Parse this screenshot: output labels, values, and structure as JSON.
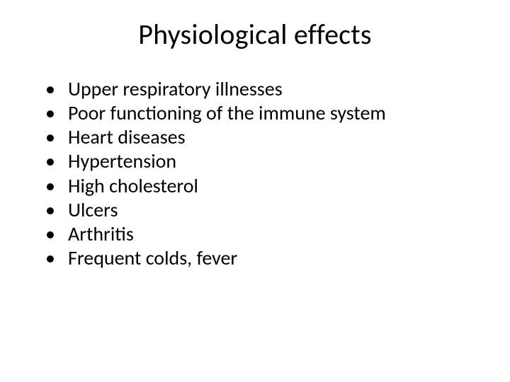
{
  "slide": {
    "title": "Physiological effects",
    "title_fontsize": 40,
    "bullet_fontsize": 28,
    "background_color": "#ffffff",
    "text_color": "#000000",
    "bullets": [
      "Upper respiratory illnesses",
      "Poor functioning of the immune system",
      "Heart diseases",
      "Hypertension",
      "High cholesterol",
      "Ulcers",
      "Arthritis",
      "Frequent colds, fever"
    ]
  }
}
